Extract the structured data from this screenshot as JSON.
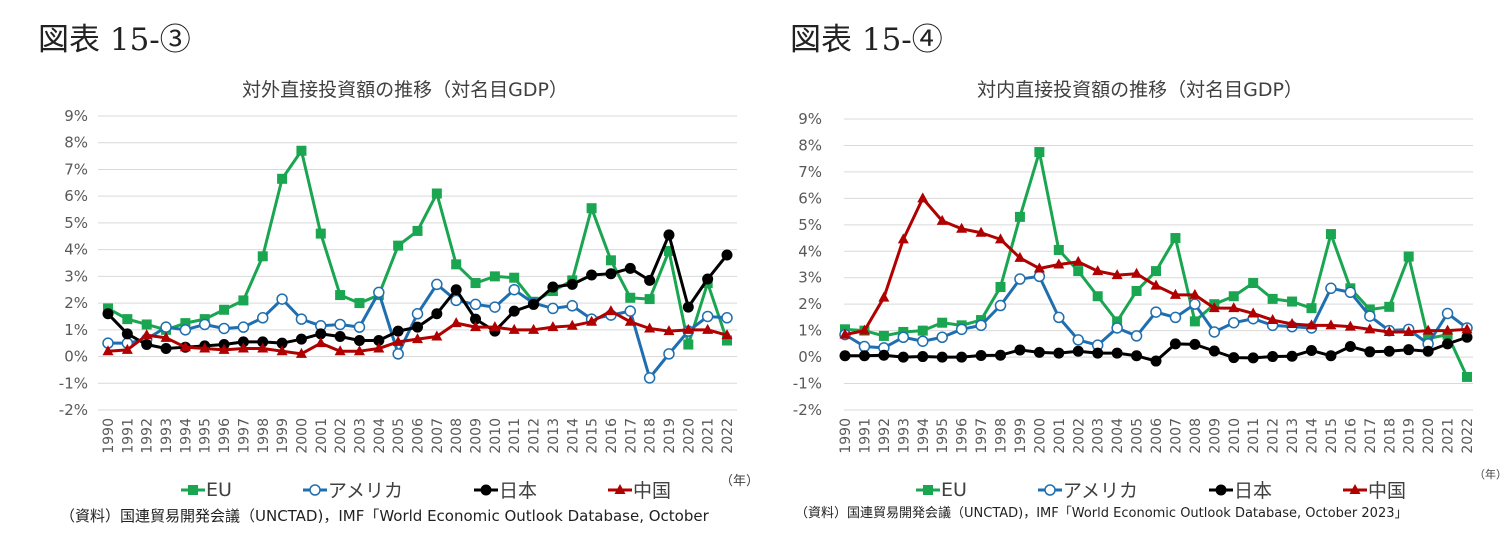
{
  "figures": [
    {
      "label": "図表 15-③",
      "source": "（資料）国連貿易開発会議（UNCTAD)，IMF「World Economic Outlook Database, October"
    },
    {
      "label": "図表 15-④",
      "source": "（資料）国連貿易開発会議（UNCTAD)，IMF「World Economic Outlook Database, October 2023」"
    }
  ],
  "legend": [
    "EU",
    "アメリカ",
    "日本",
    "中国"
  ],
  "unit_label": "（年）",
  "colors": {
    "EU": "#1aa550",
    "アメリカ": "#1f6fb0",
    "日本": "#000000",
    "中国": "#b00000",
    "grid": "#d9d9d9"
  },
  "chart_data": [
    {
      "type": "line",
      "title": "対外直接投資額の推移（対名目GDP）",
      "x": [
        1990,
        1991,
        1992,
        1993,
        1994,
        1995,
        1996,
        1997,
        1998,
        1999,
        2000,
        2001,
        2002,
        2003,
        2004,
        2005,
        2006,
        2007,
        2008,
        2009,
        2010,
        2011,
        2012,
        2013,
        2014,
        2015,
        2016,
        2017,
        2018,
        2019,
        2020,
        2021,
        2022
      ],
      "yticks": [
        "9%",
        "8%",
        "7%",
        "6%",
        "5%",
        "4%",
        "3%",
        "2%",
        "1%",
        "0%",
        "-1%",
        "-2%"
      ],
      "ylim": [
        -2,
        9
      ],
      "grid": true,
      "legend_position": "bottom",
      "series": [
        {
          "name": "EU",
          "marker": "square",
          "values": [
            1.8,
            1.4,
            1.2,
            1.0,
            1.25,
            1.4,
            1.75,
            2.1,
            3.75,
            6.65,
            7.7,
            4.6,
            2.3,
            2.0,
            2.3,
            4.15,
            4.7,
            6.1,
            3.45,
            2.75,
            3.0,
            2.95,
            2.05,
            2.45,
            2.85,
            5.55,
            3.6,
            2.2,
            2.15,
            3.95,
            0.45,
            2.75,
            0.6
          ]
        },
        {
          "name": "アメリカ",
          "marker": "open-circle",
          "values": [
            0.5,
            0.5,
            0.65,
            1.1,
            1.0,
            1.2,
            1.05,
            1.1,
            1.45,
            2.15,
            1.4,
            1.15,
            1.2,
            1.1,
            2.4,
            0.1,
            1.6,
            2.7,
            2.1,
            1.95,
            1.85,
            2.5,
            2.0,
            1.8,
            1.9,
            1.4,
            1.55,
            1.7,
            -0.8,
            0.1,
            0.95,
            1.5,
            1.45
          ]
        },
        {
          "name": "日本",
          "marker": "circle",
          "values": [
            1.6,
            0.85,
            0.45,
            0.3,
            0.35,
            0.4,
            0.45,
            0.55,
            0.55,
            0.5,
            0.65,
            0.85,
            0.75,
            0.6,
            0.6,
            0.95,
            1.1,
            1.6,
            2.5,
            1.4,
            0.95,
            1.7,
            1.95,
            2.6,
            2.7,
            3.05,
            3.1,
            3.3,
            2.85,
            4.55,
            1.85,
            2.9,
            3.8
          ]
        },
        {
          "name": "中国",
          "marker": "triangle",
          "values": [
            0.2,
            0.25,
            0.8,
            0.7,
            0.35,
            0.3,
            0.25,
            0.3,
            0.3,
            0.2,
            0.1,
            0.5,
            0.2,
            0.2,
            0.3,
            0.55,
            0.65,
            0.75,
            1.25,
            1.1,
            1.1,
            1.0,
            1.0,
            1.1,
            1.15,
            1.3,
            1.7,
            1.3,
            1.05,
            0.95,
            1.0,
            1.0,
            0.8
          ]
        }
      ]
    },
    {
      "type": "line",
      "title": "対内直接投資額の推移（対名目GDP）",
      "x": [
        1990,
        1991,
        1992,
        1993,
        1994,
        1995,
        1996,
        1997,
        1998,
        1999,
        2000,
        2001,
        2002,
        2003,
        2004,
        2005,
        2006,
        2007,
        2008,
        2009,
        2010,
        2011,
        2012,
        2013,
        2014,
        2015,
        2016,
        2017,
        2018,
        2019,
        2020,
        2021,
        2022
      ],
      "yticks": [
        "9%",
        "8%",
        "7%",
        "6%",
        "5%",
        "4%",
        "3%",
        "2%",
        "1%",
        "0%",
        "-1%",
        "-2%"
      ],
      "ylim": [
        -2,
        9
      ],
      "grid": true,
      "legend_position": "bottom",
      "series": [
        {
          "name": "EU",
          "marker": "square",
          "values": [
            1.05,
            1.0,
            0.8,
            0.95,
            1.0,
            1.3,
            1.2,
            1.4,
            2.65,
            5.3,
            7.75,
            4.05,
            3.25,
            2.3,
            1.35,
            2.5,
            3.25,
            4.5,
            1.35,
            2.0,
            2.3,
            2.8,
            2.2,
            2.1,
            1.85,
            4.65,
            2.6,
            1.8,
            1.9,
            3.8,
            0.7,
            0.85,
            -0.75
          ]
        },
        {
          "name": "アメリカ",
          "marker": "open-circle",
          "values": [
            0.85,
            0.4,
            0.35,
            0.75,
            0.6,
            0.75,
            1.05,
            1.2,
            1.95,
            2.95,
            3.05,
            1.5,
            0.65,
            0.45,
            1.1,
            0.8,
            1.7,
            1.5,
            2.0,
            0.95,
            1.3,
            1.45,
            1.2,
            1.15,
            1.1,
            2.6,
            2.45,
            1.55,
            1.0,
            1.05,
            0.5,
            1.65,
            1.1
          ]
        },
        {
          "name": "日本",
          "marker": "circle",
          "values": [
            0.05,
            0.05,
            0.07,
            0.0,
            0.02,
            0.0,
            0.0,
            0.06,
            0.07,
            0.27,
            0.18,
            0.15,
            0.22,
            0.15,
            0.15,
            0.05,
            -0.15,
            0.5,
            0.48,
            0.23,
            -0.02,
            -0.03,
            0.02,
            0.03,
            0.25,
            0.05,
            0.4,
            0.2,
            0.22,
            0.28,
            0.22,
            0.5,
            0.75
          ]
        },
        {
          "name": "中国",
          "marker": "triangle",
          "values": [
            0.85,
            1.0,
            2.25,
            4.45,
            6.0,
            5.15,
            4.85,
            4.7,
            4.45,
            3.75,
            3.35,
            3.5,
            3.6,
            3.25,
            3.1,
            3.15,
            2.7,
            2.35,
            2.35,
            1.85,
            1.85,
            1.65,
            1.4,
            1.25,
            1.2,
            1.2,
            1.15,
            1.05,
            0.95,
            0.95,
            1.0,
            1.0,
            1.05
          ]
        }
      ]
    }
  ]
}
